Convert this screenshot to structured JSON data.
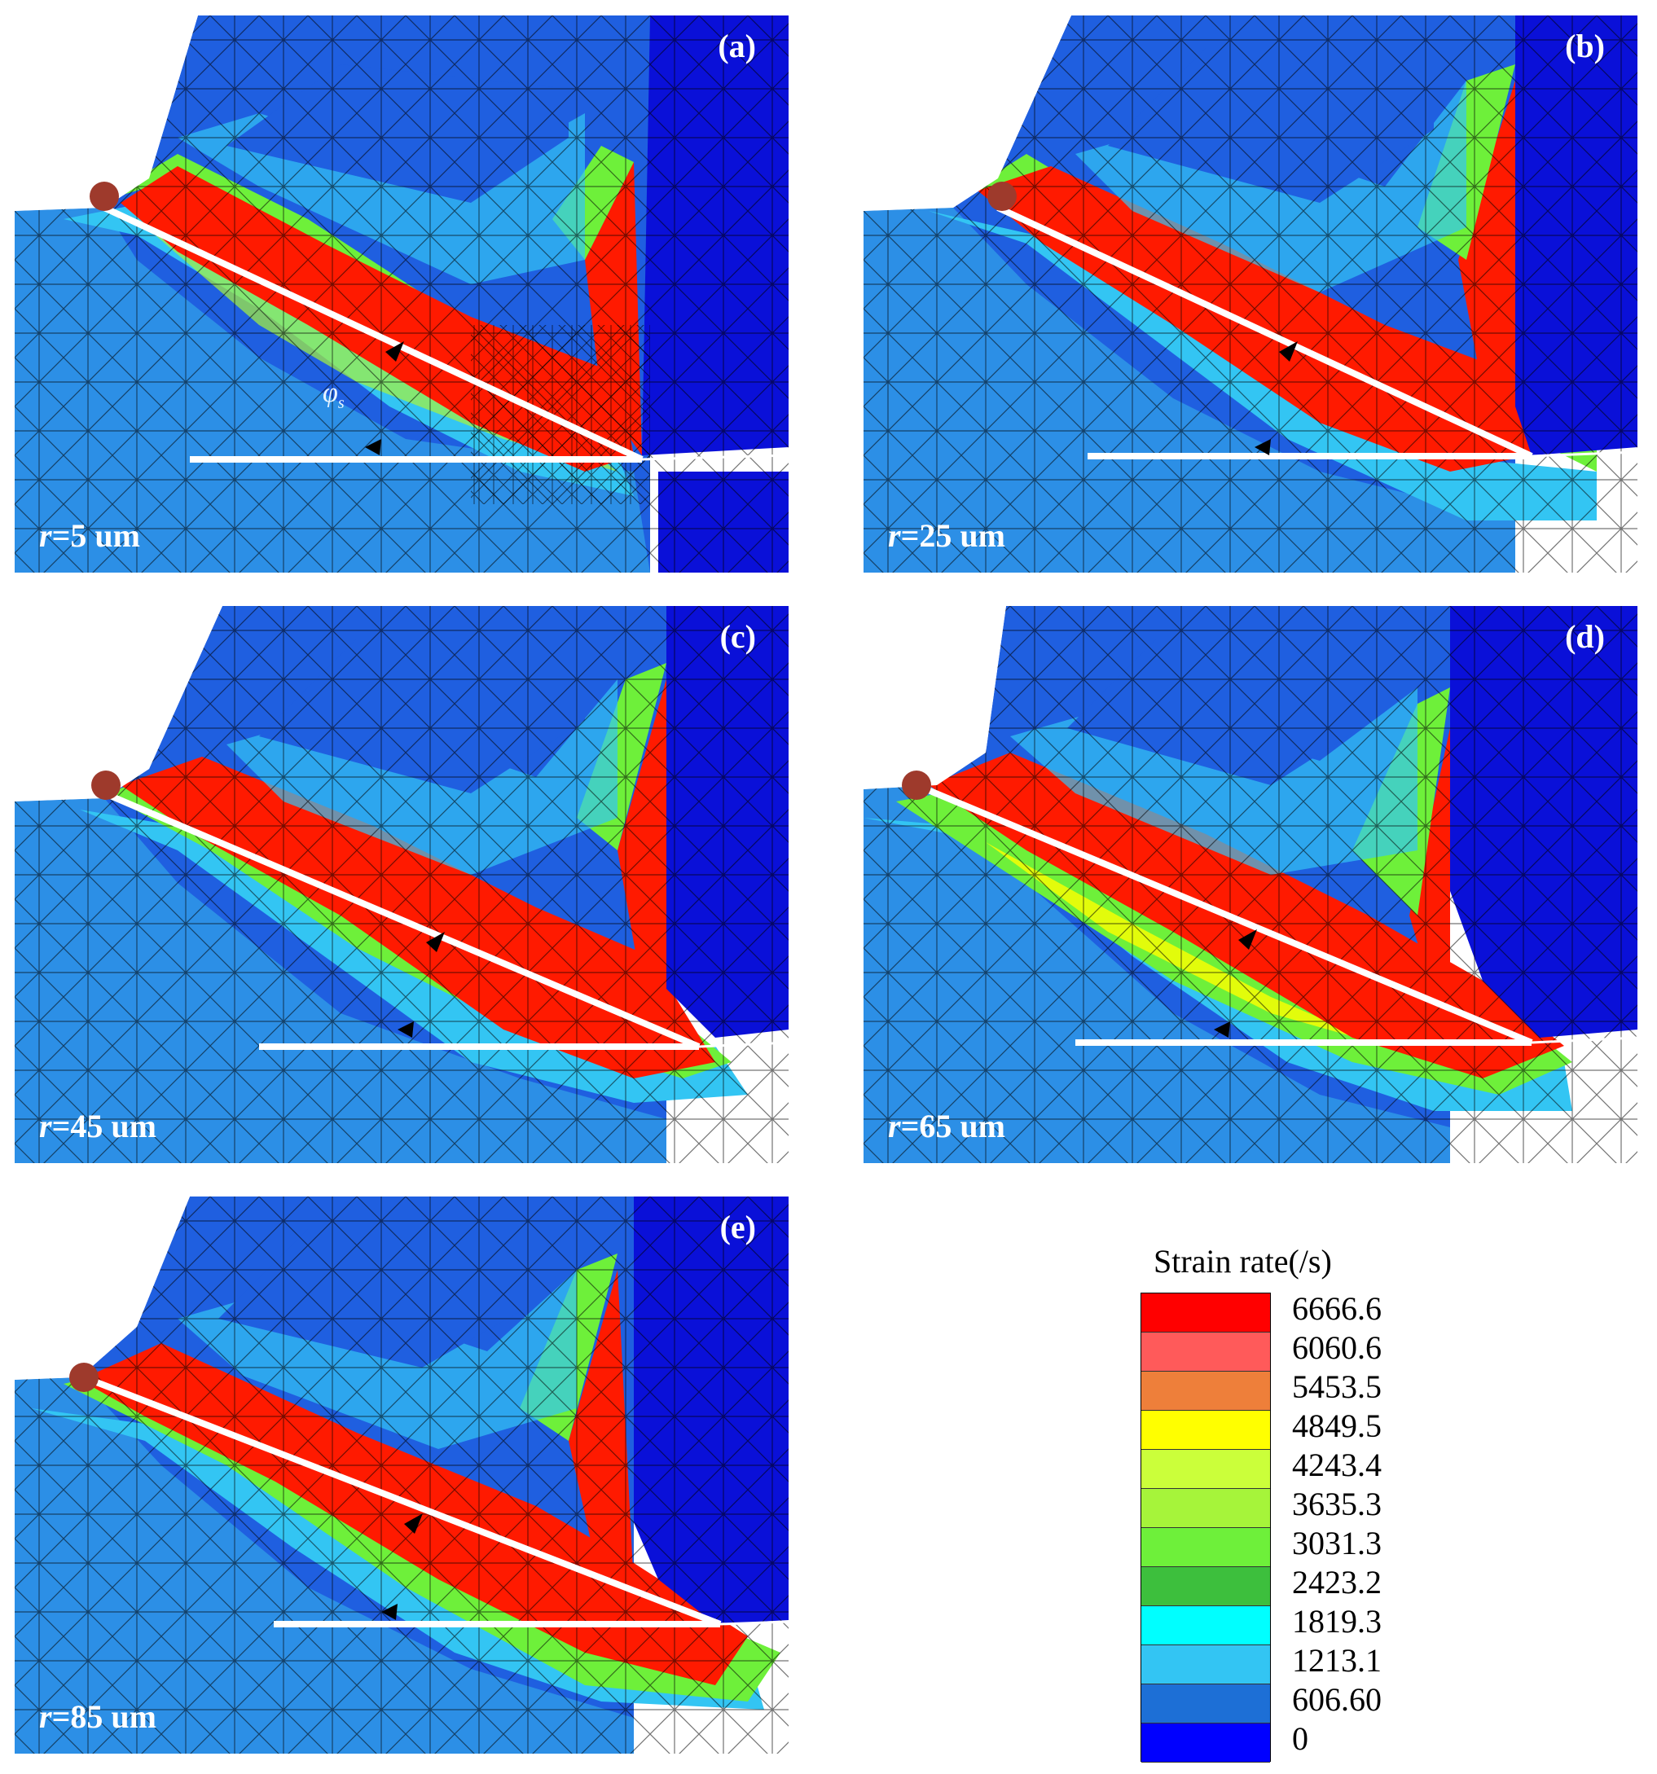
{
  "panels": [
    {
      "tag": "(a)",
      "radius_var": "r",
      "radius_text": "=5 um",
      "phi_label": "φ",
      "phi_sub": "s"
    },
    {
      "tag": "(b)",
      "radius_var": "r",
      "radius_text": "=25 um"
    },
    {
      "tag": "(c)",
      "radius_var": "r",
      "radius_text": "=45 um"
    },
    {
      "tag": "(d)",
      "radius_var": "r",
      "radius_text": "=65 um"
    },
    {
      "tag": "(e)",
      "radius_var": "r",
      "radius_text": "=85 um"
    }
  ],
  "legend": {
    "title": "Strain rate(/s)",
    "levels": [
      {
        "value": "6666.6",
        "color": "#ff0000"
      },
      {
        "value": "6060.6",
        "color": "#ff5a5a"
      },
      {
        "value": "5453.5",
        "color": "#ee7f3a"
      },
      {
        "value": "4849.5",
        "color": "#ffff00"
      },
      {
        "value": "4243.4",
        "color": "#cbff3a"
      },
      {
        "value": "3635.3",
        "color": "#a6f43a"
      },
      {
        "value": "3031.3",
        "color": "#6ef03a"
      },
      {
        "value": "2423.2",
        "color": "#3dbf3d"
      },
      {
        "value": "1819.3",
        "color": "#00ffff"
      },
      {
        "value": "1213.1",
        "color": "#33c5f3"
      },
      {
        "value": "606.60",
        "color": "#1d6fd6"
      },
      {
        "value": "0",
        "color": "#0000ff"
      }
    ]
  },
  "colors": {
    "background_blue": "#1f5fe0",
    "tool_blue": "#0a10d8",
    "strain_red": "#ff1a00",
    "shear_line": "#ffffff",
    "marker": "#9e3a2c"
  }
}
